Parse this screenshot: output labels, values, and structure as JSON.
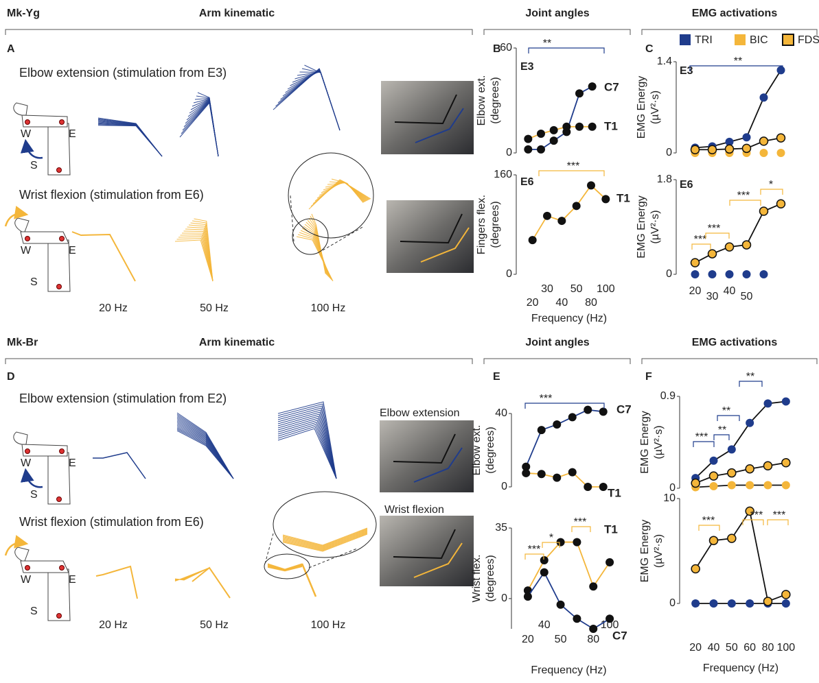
{
  "sections": [
    {
      "monkey": "Mk-Yg",
      "titles": [
        "Arm kinematic",
        "Joint angles",
        "EMG activations"
      ],
      "panels": [
        "A",
        "B",
        "C"
      ],
      "rows": [
        "Elbow extension (stimulation from E3)",
        "Wrist flexion (stimulation from E6)"
      ],
      "frequencies": [
        "20 Hz",
        "50 Hz",
        "100 Hz"
      ]
    },
    {
      "monkey": "Mk-Br",
      "titles": [
        "Arm kinematic",
        "Joint angles",
        "EMG activations"
      ],
      "panels": [
        "D",
        "E",
        "F"
      ],
      "rows": [
        "Elbow extension (stimulation from E2)",
        "Wrist flexion (stimulation from E6)"
      ],
      "frequencies": [
        "20 Hz",
        "50 Hz",
        "100 Hz"
      ],
      "photo_labels": [
        "Elbow extension",
        "Wrist flexion"
      ]
    }
  ],
  "joint_labels": [
    "W",
    "E",
    "S"
  ],
  "chart_data": [
    {
      "type": "line",
      "tag": "E3",
      "ylabel": [
        "Elbow ext.",
        "(degrees)"
      ],
      "ylim": [
        0,
        60
      ],
      "yticks": [
        0,
        60
      ],
      "series": [
        {
          "name": "C7",
          "color": "#111111",
          "line_color": "#1f3c8c",
          "values": [
            2,
            2,
            7,
            12,
            34,
            38
          ]
        },
        {
          "name": "T1",
          "color": "#111111",
          "line_color": "#f4b63a",
          "values": [
            8,
            11,
            13,
            15,
            15,
            15
          ]
        }
      ],
      "annotations": [
        "**"
      ]
    },
    {
      "type": "line",
      "tag": "E6",
      "ylabel": [
        "Fingers flex.",
        "(degrees)"
      ],
      "ylim": [
        0,
        160
      ],
      "yticks": [
        0,
        160
      ],
      "categories": [
        "20",
        "30",
        "40",
        "50",
        "80",
        "100"
      ],
      "xlabel": "Frequency (Hz)",
      "series": [
        {
          "name": "T1",
          "color": "#111111",
          "line_color": "#f4b63a",
          "values": [
            55,
            94,
            86,
            110,
            143,
            121
          ]
        }
      ],
      "annotations": [
        "***"
      ]
    },
    {
      "type": "line",
      "tag": "E3",
      "ylabel": [
        "EMG Energy",
        "(µV²·s)"
      ],
      "ylim": [
        0,
        1.4
      ],
      "yticks": [
        0,
        1.4
      ],
      "series": [
        {
          "name": "TRI",
          "color": "#1f3c8c",
          "line_color": "#111111",
          "values": [
            0.08,
            0.1,
            0.17,
            0.24,
            0.85,
            1.27
          ]
        },
        {
          "name": "BIC",
          "color": "#f4b63a",
          "values": [
            0,
            0,
            0,
            0,
            0,
            0
          ]
        },
        {
          "name": "FDS",
          "color": "#f4b63a",
          "line_color": "#111111",
          "edge_color": "#111111",
          "values": [
            0.05,
            0.05,
            0.06,
            0.07,
            0.18,
            0.23
          ]
        }
      ],
      "annotations": [
        "**"
      ]
    },
    {
      "type": "line",
      "tag": "E6",
      "ylabel": [
        "EMG Energy",
        "(µV²·s)"
      ],
      "ylim": [
        0,
        1.8
      ],
      "yticks": [
        0,
        1.8
      ],
      "categories": [
        "20",
        "30",
        "40",
        "50",
        null,
        null
      ],
      "series": [
        {
          "color": "#1f3c8c",
          "values": [
            0,
            0,
            0,
            0,
            0,
            null
          ]
        },
        {
          "color": "#f4b63a",
          "line_color": "#111111",
          "edge_color": "#111111",
          "values": [
            0.22,
            0.39,
            0.52,
            0.56,
            1.2,
            1.34
          ]
        }
      ],
      "annotations": [
        "***",
        "***",
        "***",
        "*"
      ]
    },
    {
      "type": "line",
      "ylabel": [
        "Elbow ext.",
        "(degrees)"
      ],
      "ylim": [
        0,
        40
      ],
      "yticks": [
        0,
        40
      ],
      "series": [
        {
          "name": "C7",
          "color": "#111111",
          "line_color": "#1f3c8c",
          "values": [
            11,
            31,
            34,
            38,
            42,
            41
          ]
        },
        {
          "name": "T1",
          "color": "#111111",
          "line_color": "#f4b63a",
          "values": [
            7.5,
            7,
            5,
            8,
            0,
            0
          ]
        }
      ],
      "annotations": [
        "***"
      ]
    },
    {
      "type": "line",
      "ylabel": [
        "Wrist flex.",
        "(degrees)"
      ],
      "ylim": [
        -15,
        35
      ],
      "yticks": [
        0,
        35
      ],
      "categories": [
        "20",
        "40",
        "50",
        null,
        "80",
        "100"
      ],
      "xlabel": "Frequency (Hz)",
      "series": [
        {
          "name": "T1",
          "color": "#111111",
          "line_color": "#f4b63a",
          "values": [
            4,
            19,
            28,
            28,
            6,
            18
          ]
        },
        {
          "name": "C7",
          "color": "#111111",
          "line_color": "#1f3c8c",
          "values": [
            1,
            13,
            -3,
            -10,
            -15,
            -10
          ]
        }
      ],
      "annotations": [
        "***",
        "*",
        "***"
      ]
    },
    {
      "type": "line",
      "ylabel": [
        "EMG Energy",
        "(µV²·s)"
      ],
      "ylim": [
        0,
        0.9
      ],
      "yticks": [
        0,
        0.9
      ],
      "series": [
        {
          "color": "#f4b63a",
          "line_color": "#111111",
          "values": [
            0.01,
            0.02,
            0.03,
            0.03,
            0.03,
            0.03
          ]
        },
        {
          "color": "#1f3c8c",
          "line_color": "#111111",
          "values": [
            0.1,
            0.27,
            0.38,
            0.64,
            0.83,
            0.85
          ]
        },
        {
          "color": "#f4b63a",
          "line_color": "#111111",
          "edge_color": "#111111",
          "values": [
            0.05,
            0.12,
            0.15,
            0.19,
            0.22,
            0.25
          ]
        }
      ],
      "annotations": [
        "***",
        "**",
        "**",
        "**"
      ]
    },
    {
      "type": "line",
      "ylabel": [
        "EMG Energy",
        "(µV²·s)"
      ],
      "ylim": [
        0,
        10
      ],
      "yticks": [
        0,
        10
      ],
      "categories": [
        "20",
        "40",
        "50",
        "60",
        "80",
        "100"
      ],
      "xlabel": "Frequency (Hz)",
      "series": [
        {
          "color": "#1f3c8c",
          "line_color": "#111111",
          "values": [
            0,
            0,
            0,
            0,
            0,
            0
          ]
        },
        {
          "color": "#f4b63a",
          "line_color": "#111111",
          "edge_color": "#111111",
          "values": [
            3.3,
            6,
            6.2,
            8.8,
            0.2,
            0.85
          ]
        }
      ],
      "annotations": [
        "***",
        "***",
        "***"
      ]
    }
  ]
}
